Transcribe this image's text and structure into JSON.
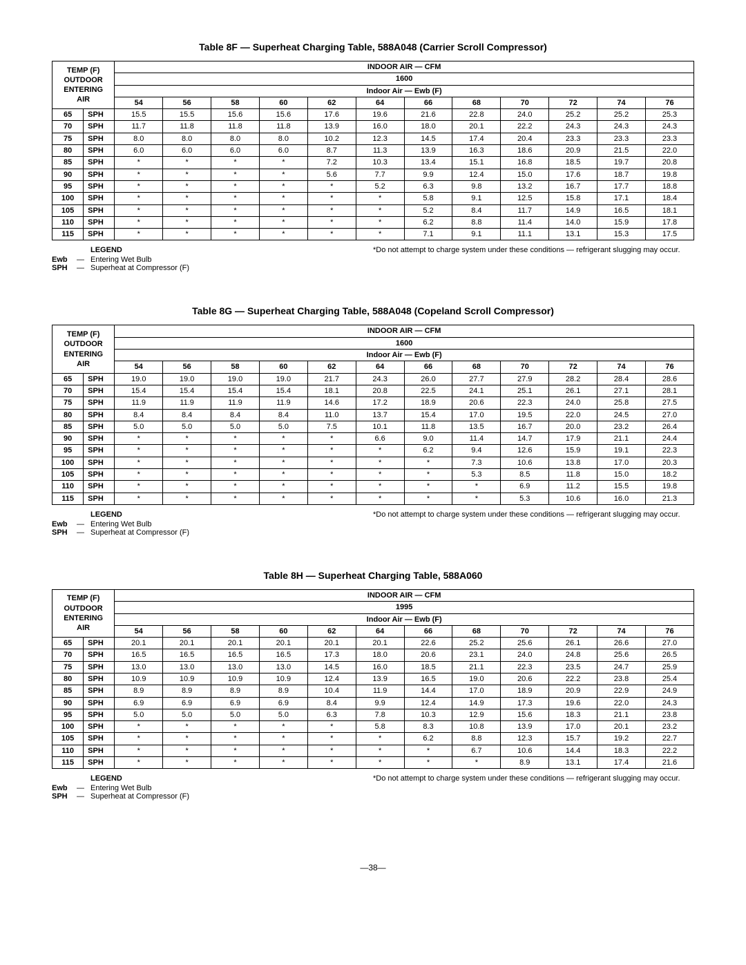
{
  "page_number": "—38—",
  "tables": [
    {
      "title": "Table 8F — Superheat Charging Table, 588A048 (Carrier Scroll Compressor)",
      "header_left": [
        "TEMP (F)",
        "OUTDOOR",
        "ENTERING",
        "AIR"
      ],
      "header_cfm": "INDOOR AIR — CFM",
      "cfm_value": "1600",
      "header_ewb": "Indoor Air — Ewb (F)",
      "ewb_cols": [
        "54",
        "56",
        "58",
        "60",
        "62",
        "64",
        "66",
        "68",
        "70",
        "72",
        "74",
        "76"
      ],
      "rows": [
        {
          "t": "65",
          "v": [
            "15.5",
            "15.5",
            "15.6",
            "15.6",
            "17.6",
            "19.6",
            "21.6",
            "22.8",
            "24.0",
            "25.2",
            "25.2",
            "25.3"
          ]
        },
        {
          "t": "70",
          "v": [
            "11.7",
            "11.8",
            "11.8",
            "11.8",
            "13.9",
            "16.0",
            "18.0",
            "20.1",
            "22.2",
            "24.3",
            "24.3",
            "24.3"
          ]
        },
        {
          "t": "75",
          "v": [
            "8.0",
            "8.0",
            "8.0",
            "8.0",
            "10.2",
            "12.3",
            "14.5",
            "17.4",
            "20.4",
            "23.3",
            "23.3",
            "23.3"
          ]
        },
        {
          "t": "80",
          "v": [
            "6.0",
            "6.0",
            "6.0",
            "6.0",
            "8.7",
            "11.3",
            "13.9",
            "16.3",
            "18.6",
            "20.9",
            "21.5",
            "22.0"
          ]
        },
        {
          "t": "85",
          "v": [
            "*",
            "*",
            "*",
            "*",
            "7.2",
            "10.3",
            "13.4",
            "15.1",
            "16.8",
            "18.5",
            "19.7",
            "20.8"
          ]
        },
        {
          "t": "90",
          "v": [
            "*",
            "*",
            "*",
            "*",
            "5.6",
            "7.7",
            "9.9",
            "12.4",
            "15.0",
            "17.6",
            "18.7",
            "19.8"
          ]
        },
        {
          "t": "95",
          "v": [
            "*",
            "*",
            "*",
            "*",
            "*",
            "5.2",
            "6.3",
            "9.8",
            "13.2",
            "16.7",
            "17.7",
            "18.8"
          ]
        },
        {
          "t": "100",
          "v": [
            "*",
            "*",
            "*",
            "*",
            "*",
            "*",
            "5.8",
            "9.1",
            "12.5",
            "15.8",
            "17.1",
            "18.4"
          ]
        },
        {
          "t": "105",
          "v": [
            "*",
            "*",
            "*",
            "*",
            "*",
            "*",
            "5.2",
            "8.4",
            "11.7",
            "14.9",
            "16.5",
            "18.1"
          ]
        },
        {
          "t": "110",
          "v": [
            "*",
            "*",
            "*",
            "*",
            "*",
            "*",
            "6.2",
            "8.8",
            "11.4",
            "14.0",
            "15.9",
            "17.8"
          ]
        },
        {
          "t": "115",
          "v": [
            "*",
            "*",
            "*",
            "*",
            "*",
            "*",
            "7.1",
            "9.1",
            "11.1",
            "13.1",
            "15.3",
            "17.5"
          ]
        }
      ]
    },
    {
      "title": "Table 8G — Superheat Charging Table, 588A048 (Copeland Scroll Compressor)",
      "header_left": [
        "TEMP (F)",
        "OUTDOOR",
        "ENTERING",
        "AIR"
      ],
      "header_cfm": "INDOOR AIR — CFM",
      "cfm_value": "1600",
      "header_ewb": "Indoor Air — Ewb (F)",
      "ewb_cols": [
        "54",
        "56",
        "58",
        "60",
        "62",
        "64",
        "66",
        "68",
        "70",
        "72",
        "74",
        "76"
      ],
      "rows": [
        {
          "t": "65",
          "v": [
            "19.0",
            "19.0",
            "19.0",
            "19.0",
            "21.7",
            "24.3",
            "26.0",
            "27.7",
            "27.9",
            "28.2",
            "28.4",
            "28.6"
          ]
        },
        {
          "t": "70",
          "v": [
            "15.4",
            "15.4",
            "15.4",
            "15.4",
            "18.1",
            "20.8",
            "22.5",
            "24.1",
            "25.1",
            "26.1",
            "27.1",
            "28.1"
          ]
        },
        {
          "t": "75",
          "v": [
            "11.9",
            "11.9",
            "11.9",
            "11.9",
            "14.6",
            "17.2",
            "18.9",
            "20.6",
            "22.3",
            "24.0",
            "25.8",
            "27.5"
          ]
        },
        {
          "t": "80",
          "v": [
            "8.4",
            "8.4",
            "8.4",
            "8.4",
            "11.0",
            "13.7",
            "15.4",
            "17.0",
            "19.5",
            "22.0",
            "24.5",
            "27.0"
          ]
        },
        {
          "t": "85",
          "v": [
            "5.0",
            "5.0",
            "5.0",
            "5.0",
            "7.5",
            "10.1",
            "11.8",
            "13.5",
            "16.7",
            "20.0",
            "23.2",
            "26.4"
          ]
        },
        {
          "t": "90",
          "v": [
            "*",
            "*",
            "*",
            "*",
            "*",
            "6.6",
            "9.0",
            "11.4",
            "14.7",
            "17.9",
            "21.1",
            "24.4"
          ]
        },
        {
          "t": "95",
          "v": [
            "*",
            "*",
            "*",
            "*",
            "*",
            "*",
            "6.2",
            "9.4",
            "12.6",
            "15.9",
            "19.1",
            "22.3"
          ]
        },
        {
          "t": "100",
          "v": [
            "*",
            "*",
            "*",
            "*",
            "*",
            "*",
            "*",
            "7.3",
            "10.6",
            "13.8",
            "17.0",
            "20.3"
          ]
        },
        {
          "t": "105",
          "v": [
            "*",
            "*",
            "*",
            "*",
            "*",
            "*",
            "*",
            "5.3",
            "8.5",
            "11.8",
            "15.0",
            "18.2"
          ]
        },
        {
          "t": "110",
          "v": [
            "*",
            "*",
            "*",
            "*",
            "*",
            "*",
            "*",
            "*",
            "6.9",
            "11.2",
            "15.5",
            "19.8"
          ]
        },
        {
          "t": "115",
          "v": [
            "*",
            "*",
            "*",
            "*",
            "*",
            "*",
            "*",
            "*",
            "5.3",
            "10.6",
            "16.0",
            "21.3"
          ]
        }
      ]
    },
    {
      "title": "Table 8H — Superheat Charging Table, 588A060",
      "header_left": [
        "TEMP (F)",
        "OUTDOOR",
        "ENTERING",
        "AIR"
      ],
      "header_cfm": "INDOOR AIR — CFM",
      "cfm_value": "1995",
      "header_ewb": "Indoor Air — Ewb (F)",
      "ewb_cols": [
        "54",
        "56",
        "58",
        "60",
        "62",
        "64",
        "66",
        "68",
        "70",
        "72",
        "74",
        "76"
      ],
      "rows": [
        {
          "t": "65",
          "v": [
            "20.1",
            "20.1",
            "20.1",
            "20.1",
            "20.1",
            "20.1",
            "22.6",
            "25.2",
            "25.6",
            "26.1",
            "26.6",
            "27.0"
          ]
        },
        {
          "t": "70",
          "v": [
            "16.5",
            "16.5",
            "16.5",
            "16.5",
            "17.3",
            "18.0",
            "20.6",
            "23.1",
            "24.0",
            "24.8",
            "25.6",
            "26.5"
          ]
        },
        {
          "t": "75",
          "v": [
            "13.0",
            "13.0",
            "13.0",
            "13.0",
            "14.5",
            "16.0",
            "18.5",
            "21.1",
            "22.3",
            "23.5",
            "24.7",
            "25.9"
          ]
        },
        {
          "t": "80",
          "v": [
            "10.9",
            "10.9",
            "10.9",
            "10.9",
            "12.4",
            "13.9",
            "16.5",
            "19.0",
            "20.6",
            "22.2",
            "23.8",
            "25.4"
          ]
        },
        {
          "t": "85",
          "v": [
            "8.9",
            "8.9",
            "8.9",
            "8.9",
            "10.4",
            "11.9",
            "14.4",
            "17.0",
            "18.9",
            "20.9",
            "22.9",
            "24.9"
          ]
        },
        {
          "t": "90",
          "v": [
            "6.9",
            "6.9",
            "6.9",
            "6.9",
            "8.4",
            "9.9",
            "12.4",
            "14.9",
            "17.3",
            "19.6",
            "22.0",
            "24.3"
          ]
        },
        {
          "t": "95",
          "v": [
            "5.0",
            "5.0",
            "5.0",
            "5.0",
            "6.3",
            "7.8",
            "10.3",
            "12.9",
            "15.6",
            "18.3",
            "21.1",
            "23.8"
          ]
        },
        {
          "t": "100",
          "v": [
            "*",
            "*",
            "*",
            "*",
            "*",
            "5.8",
            "8.3",
            "10.8",
            "13.9",
            "17.0",
            "20.1",
            "23.2"
          ]
        },
        {
          "t": "105",
          "v": [
            "*",
            "*",
            "*",
            "*",
            "*",
            "*",
            "6.2",
            "8.8",
            "12.3",
            "15.7",
            "19.2",
            "22.7"
          ]
        },
        {
          "t": "110",
          "v": [
            "*",
            "*",
            "*",
            "*",
            "*",
            "*",
            "*",
            "6.7",
            "10.6",
            "14.4",
            "18.3",
            "22.2"
          ]
        },
        {
          "t": "115",
          "v": [
            "*",
            "*",
            "*",
            "*",
            "*",
            "*",
            "*",
            "*",
            "8.9",
            "13.1",
            "17.4",
            "21.6"
          ]
        }
      ]
    }
  ],
  "legend": {
    "title": "LEGEND",
    "lines": [
      {
        "key": "Ewb",
        "dash": "—",
        "desc": "Entering Wet Bulb"
      },
      {
        "key": "SPH",
        "dash": "—",
        "desc": "Superheat at Compressor (F)"
      }
    ],
    "note": "*Do not attempt to charge system under these conditions — refrigerant slugging may occur."
  },
  "sph_label": "SPH"
}
